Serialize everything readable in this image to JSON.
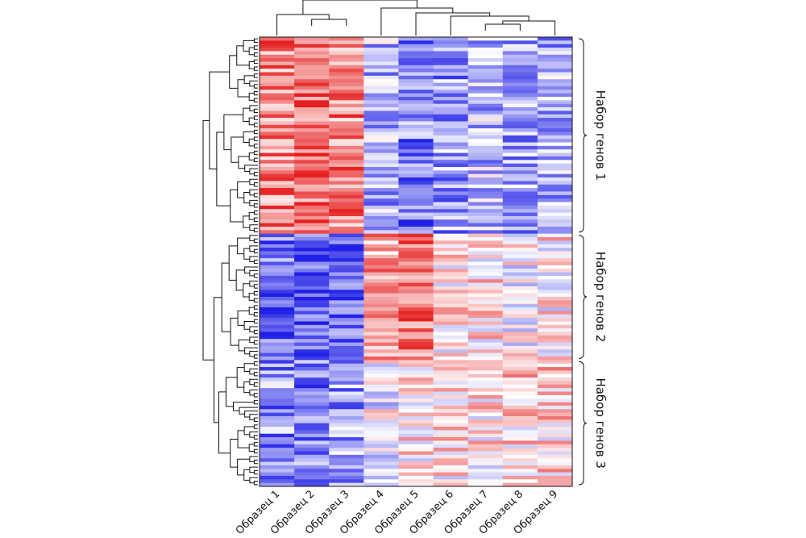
{
  "chart_data": {
    "type": "heatmap",
    "title": "",
    "xlabel": "",
    "ylabel": "",
    "columns": [
      "Образец 1",
      "Образец 2",
      "Образец 3",
      "Образец 4",
      "Образец 5",
      "Образец 6",
      "Образец 7",
      "Образец 8",
      "Образец 9"
    ],
    "groups": [
      {
        "label": "Набор генов 1",
        "rows": 56
      },
      {
        "label": "Набор генов 2",
        "rows": 36
      },
      {
        "label": "Набор генов 3",
        "rows": 36
      }
    ],
    "color_scale": {
      "low": "#1f1fe6",
      "mid": "#ffffff",
      "high": "#e61f1f",
      "range": [
        -1,
        1
      ]
    },
    "column_dendrogram": true,
    "row_dendrogram": true,
    "group_patterns": [
      [
        0.55,
        0.65,
        0.55,
        -0.35,
        -0.55,
        -0.45,
        -0.3,
        -0.4,
        -0.4
      ],
      [
        -0.6,
        -0.75,
        -0.65,
        0.45,
        0.6,
        0.15,
        0.15,
        0.0,
        0.1
      ],
      [
        -0.5,
        -0.6,
        -0.45,
        -0.05,
        0.15,
        0.15,
        0.1,
        0.2,
        0.2
      ]
    ],
    "noise": 0.45,
    "seed": 7
  }
}
